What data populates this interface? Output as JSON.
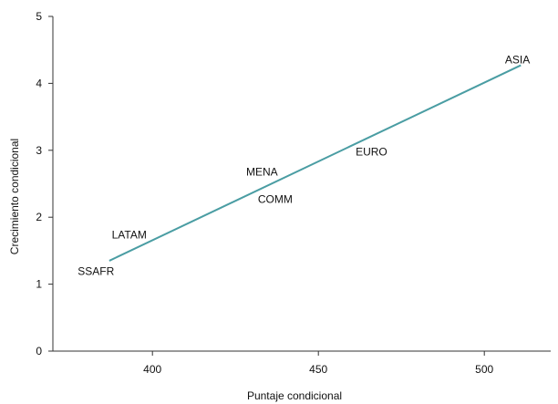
{
  "chart_data": {
    "type": "line",
    "title": "",
    "xlabel": "Puntaje condicional",
    "ylabel": "Crecimiento condicional",
    "xlim": [
      370,
      520
    ],
    "ylim": [
      0,
      5
    ],
    "x_ticks": [
      400,
      450,
      500
    ],
    "y_ticks": [
      0,
      1,
      2,
      3,
      4,
      5
    ],
    "grid": false,
    "series": [
      {
        "values": [
          {
            "x": 387,
            "y": 1.35
          },
          {
            "x": 511,
            "y": 4.27
          }
        ],
        "color": "#4a9da3"
      }
    ],
    "points": [
      {
        "label": "ASIA",
        "x": 510,
        "y": 4.35
      },
      {
        "label": "EURO",
        "x": 466,
        "y": 2.98
      },
      {
        "label": "MENA",
        "x": 433,
        "y": 2.68
      },
      {
        "label": "COMM",
        "x": 437,
        "y": 2.27
      },
      {
        "label": "LATAM",
        "x": 393,
        "y": 1.74
      },
      {
        "label": "SSAFR",
        "x": 383,
        "y": 1.19
      }
    ]
  }
}
